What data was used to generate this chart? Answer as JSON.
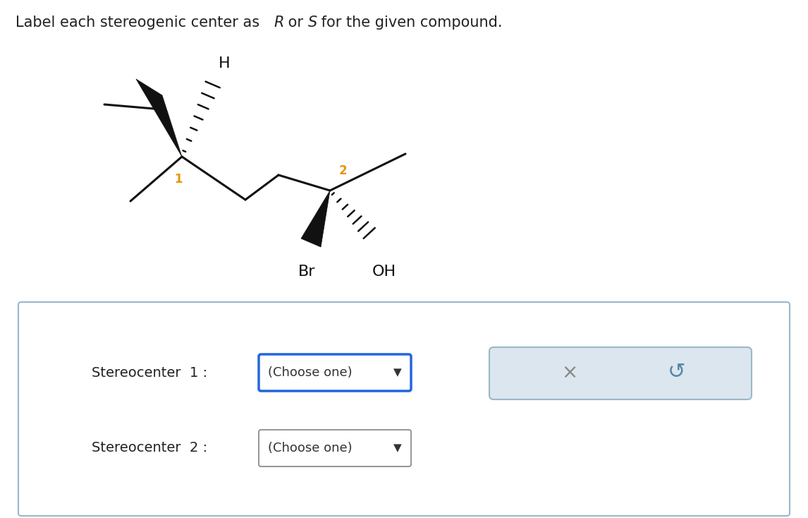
{
  "background_color": "#ffffff",
  "molecule": {
    "label1_color": "#e8950a",
    "label2_color": "#e8950a",
    "bond_color": "#111111",
    "bond_lw": 2.2
  },
  "ui": {
    "box1_text": "(Choose one)",
    "box2_text": "(Choose one)",
    "label1": "Stereocenter  1 :",
    "label2": "Stereocenter  2 :",
    "panel_border": "#9ab8c8",
    "box1_border": "#2266dd",
    "box2_border": "#999999",
    "x_color": "#888888",
    "undo_color": "#5588aa",
    "btn_bg": "#dce6ee",
    "btn_border": "#9ab8c8"
  }
}
